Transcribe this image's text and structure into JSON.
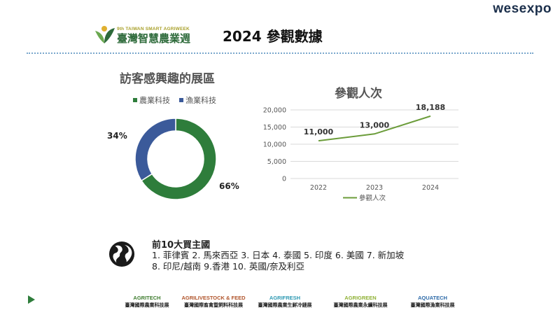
{
  "brand": "wesexpo",
  "logo": {
    "subtitle": "9th TAIWAN SMART AGRIWEEK",
    "name": "臺灣智慧農業週"
  },
  "title": "2024 參觀數據",
  "colors": {
    "green": "#2e7d3b",
    "blue": "#3b5a9a",
    "line": "#6b9c3a"
  },
  "chart_data": [
    {
      "type": "pie",
      "title": "訪客感興趣的展區",
      "series": [
        {
          "name": "農業科技",
          "value": 66,
          "label": "66%"
        },
        {
          "name": "漁業科技",
          "value": 34,
          "label": "34%"
        }
      ],
      "legend": "top"
    },
    {
      "type": "line",
      "title": "參觀人次",
      "categories": [
        "2022",
        "2023",
        "2024"
      ],
      "series": [
        {
          "name": "參觀人次",
          "values": [
            11000,
            13000,
            18188
          ],
          "labels": [
            "11,000",
            "13,000",
            "18,188"
          ]
        }
      ],
      "ylim": [
        0,
        20000
      ],
      "yticks": [
        "0",
        "5,000",
        "10,000",
        "15,000",
        "20,000"
      ],
      "grid": true,
      "legend": "bottom"
    }
  ],
  "countries": {
    "title": "前10大買主國",
    "line1": "1. 菲律賓   2. 馬來西亞   3. 日本   4. 泰國   5. 印度   6. 美國   7. 新加坡",
    "line2": "8. 印尼/越南   9.香港   10. 英國/奈及利亞"
  },
  "expos": [
    {
      "en": "AGRITECH",
      "zh": "臺灣國際農業科技展",
      "color": "#3f7d2f"
    },
    {
      "en": "AGRILIVESTOCK & FEED",
      "zh": "臺灣國際畜禽暨飼料科技展",
      "color": "#b0542b"
    },
    {
      "en": "AGRIFRESH",
      "zh": "臺灣國際農業生鮮冷鏈展",
      "color": "#2f9ab3"
    },
    {
      "en": "AGRIGREEN",
      "zh": "臺灣國際農業永續科技展",
      "color": "#8fb135"
    },
    {
      "en": "AQUATECH",
      "zh": "臺灣國際漁業科技展",
      "color": "#2d6aa8"
    }
  ]
}
